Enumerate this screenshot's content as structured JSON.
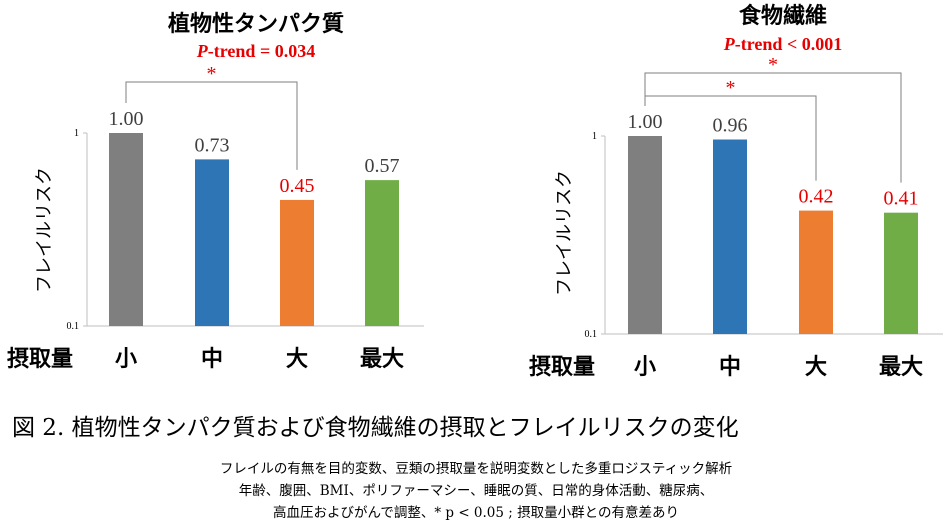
{
  "chart_data": [
    {
      "type": "bar",
      "title": "植物性タンパク質",
      "subtitle": {
        "prefix": "P",
        "text": "-trend = 0.034"
      },
      "ylabel": "フレイルリスク",
      "xlabel": "摂取量",
      "y_scale": "log",
      "ylim": [
        0.1,
        1
      ],
      "y_ticks": [
        "1",
        "0.1"
      ],
      "categories": [
        "小",
        "中",
        "大",
        "最大"
      ],
      "values": [
        1.0,
        0.73,
        0.45,
        0.57
      ],
      "labels": [
        "1.00",
        "0.73",
        "0.45",
        "0.57"
      ],
      "colors": [
        "#7f7f7f",
        "#2e75b6",
        "#ed7d31",
        "#70ad47"
      ],
      "label_colors": [
        "#404040",
        "#404040",
        "#e60000",
        "#404040"
      ],
      "significance": [
        {
          "from": 0,
          "to": 2,
          "mark": "*"
        }
      ]
    },
    {
      "type": "bar",
      "title": "食物繊維",
      "subtitle": {
        "prefix": "P",
        "text": "-trend < 0.001"
      },
      "ylabel": "フレイルリスク",
      "xlabel": "摂取量",
      "y_scale": "log",
      "ylim": [
        0.1,
        1
      ],
      "y_ticks": [
        "1",
        "0.1"
      ],
      "categories": [
        "小",
        "中",
        "大",
        "最大"
      ],
      "values": [
        1.0,
        0.96,
        0.42,
        0.41
      ],
      "labels": [
        "1.00",
        "0.96",
        "0.42",
        "0.41"
      ],
      "colors": [
        "#7f7f7f",
        "#2e75b6",
        "#ed7d31",
        "#70ad47"
      ],
      "label_colors": [
        "#404040",
        "#404040",
        "#e60000",
        "#e60000"
      ],
      "significance": [
        {
          "from": 0,
          "to": 2,
          "mark": "*"
        },
        {
          "from": 0,
          "to": 3,
          "mark": "*"
        }
      ]
    }
  ],
  "caption": "図 2. 植物性タンパク質および食物繊維の摂取とフレイルリスクの変化",
  "notes": [
    "フレイルの有無を目的変数、豆類の摂取量を説明変数とした多重ロジスティック解析",
    "年齢、腹囲、BMI、ポリファーマシー、睡眠の質、日常的身体活動、糖尿病、",
    "高血圧およびがんで調整、* p < 0.05 ; 摂取量小群との有意差あり"
  ]
}
